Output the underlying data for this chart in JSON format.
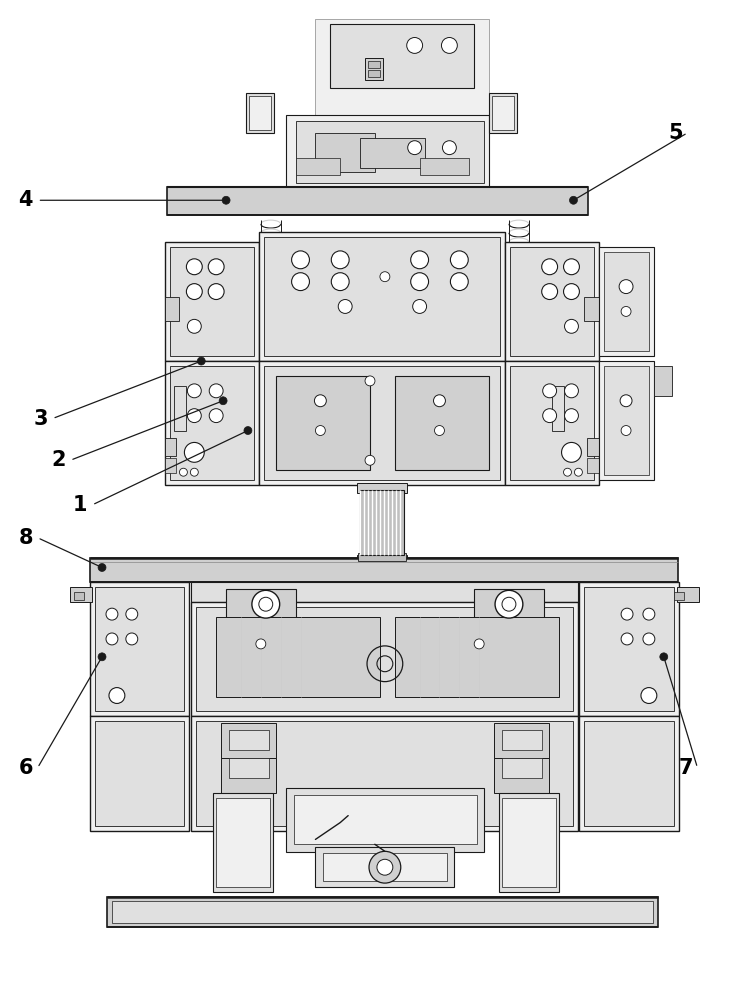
{
  "background_color": "#ffffff",
  "line_color": "#1a1a1a",
  "gray1": "#f0f0f0",
  "gray2": "#e0e0e0",
  "gray3": "#d0d0d0",
  "gray4": "#c0c0c0",
  "gray5": "#a0a0a0",
  "figsize": [
    7.4,
    10.0
  ],
  "dpi": 100
}
